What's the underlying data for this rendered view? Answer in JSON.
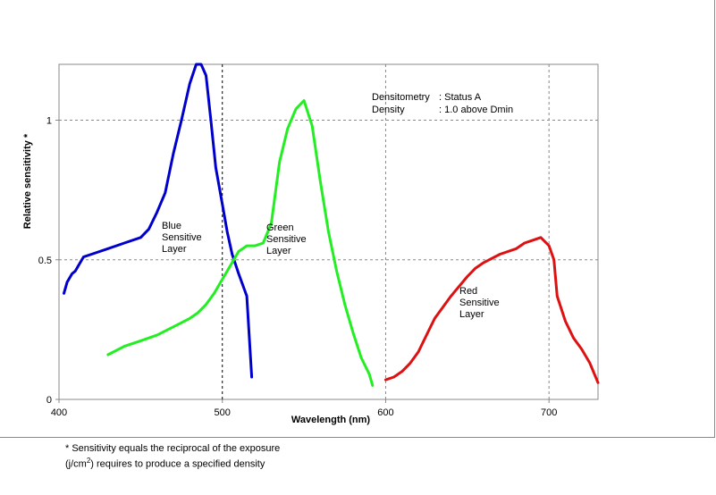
{
  "chart_data": {
    "type": "line",
    "xlabel": "Wavelength (nm)",
    "ylabel": "Relative sensitivity *",
    "xlim": [
      400,
      730
    ],
    "ylim": [
      0,
      1.2
    ],
    "x_ticks": [
      400,
      500,
      600,
      700
    ],
    "y_ticks": [
      0,
      0.5,
      1
    ],
    "y_tick_labels": [
      "0",
      "0.5",
      "1"
    ],
    "grid": "dashed at y=0.5, y=1, x=500, x=600, x=700",
    "annotation": {
      "line1_key": "Densitometry",
      "line1_value": ": Status A",
      "line2_key": "Density",
      "line2_value": ": 1.0 above  Dmin"
    },
    "series": [
      {
        "name_lines": [
          "Blue",
          "Sensitive",
          "Layer"
        ],
        "color": "#0000cc",
        "x": [
          403,
          405,
          408,
          410,
          412,
          415,
          420,
          430,
          440,
          450,
          455,
          460,
          465,
          470,
          475,
          480,
          484,
          487,
          490,
          493,
          496,
          500,
          503,
          506,
          510,
          515,
          518
        ],
        "y": [
          0.38,
          0.42,
          0.45,
          0.46,
          0.48,
          0.51,
          0.52,
          0.54,
          0.56,
          0.58,
          0.61,
          0.67,
          0.74,
          0.88,
          1.0,
          1.13,
          1.2,
          1.2,
          1.16,
          1.0,
          0.83,
          0.7,
          0.6,
          0.52,
          0.45,
          0.37,
          0.08
        ]
      },
      {
        "name_lines": [
          "Green",
          "Sensitive",
          "Layer"
        ],
        "color": "#22ee22",
        "x": [
          430,
          440,
          450,
          460,
          470,
          480,
          485,
          490,
          495,
          500,
          505,
          510,
          515,
          520,
          525,
          530,
          535,
          540,
          545,
          550,
          555,
          560,
          565,
          570,
          575,
          580,
          585,
          590,
          592
        ],
        "y": [
          0.16,
          0.19,
          0.21,
          0.23,
          0.26,
          0.29,
          0.31,
          0.34,
          0.38,
          0.43,
          0.48,
          0.53,
          0.55,
          0.55,
          0.56,
          0.63,
          0.85,
          0.97,
          1.04,
          1.07,
          0.98,
          0.78,
          0.6,
          0.46,
          0.34,
          0.24,
          0.15,
          0.09,
          0.05
        ]
      },
      {
        "name_lines": [
          "Red",
          "Sensitive",
          "Layer"
        ],
        "color": "#dd1111",
        "x": [
          600,
          605,
          610,
          615,
          620,
          625,
          630,
          640,
          650,
          655,
          660,
          670,
          680,
          685,
          690,
          695,
          700,
          703,
          705,
          710,
          715,
          720,
          725,
          730
        ],
        "y": [
          0.07,
          0.08,
          0.1,
          0.13,
          0.17,
          0.23,
          0.29,
          0.37,
          0.44,
          0.47,
          0.49,
          0.52,
          0.54,
          0.56,
          0.57,
          0.58,
          0.55,
          0.5,
          0.37,
          0.28,
          0.22,
          0.18,
          0.13,
          0.06
        ]
      }
    ]
  },
  "footnote": {
    "line1": "* Sensitivity equals the reciprocal of the exposure",
    "line2_pre": "(j/cm",
    "line2_sup": "2",
    "line2_post": ") requires to produce a specified density"
  }
}
